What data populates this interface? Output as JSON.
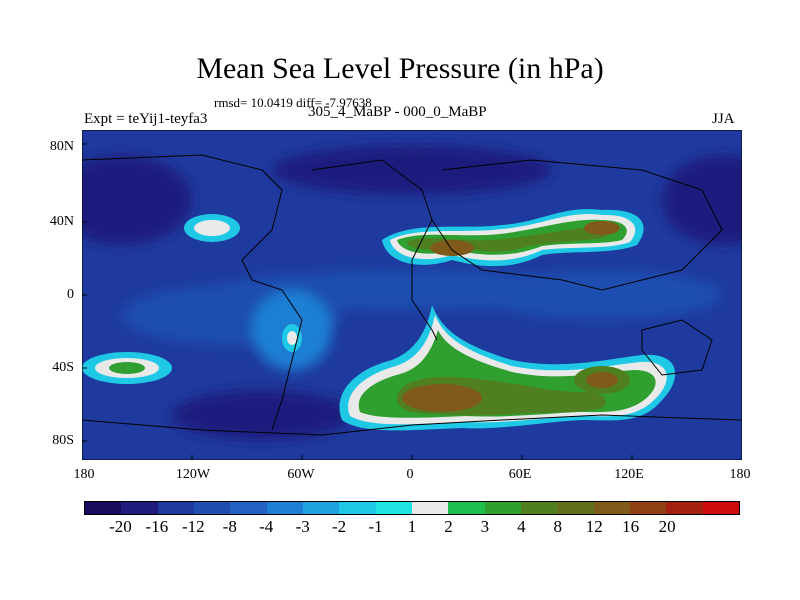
{
  "title": "Mean Sea Level Pressure (in hPa)",
  "stats": "rmsd= 10.0419 diff= -7.97638",
  "experiment": "Expt = teYij1-teyfa3",
  "comparison": "305_4_MaBP - 000_0_MaBP",
  "season": "JJA",
  "latitude_labels": [
    "80N",
    "40N",
    "0",
    "40S",
    "80S"
  ],
  "longitude_labels": [
    "180",
    "120W",
    "60W",
    "0",
    "60E",
    "120E",
    "180"
  ],
  "colorbar": {
    "colors": [
      "#1a0a5e",
      "#1f1c7e",
      "#1f3a9e",
      "#1f4eb0",
      "#2260c4",
      "#1f7fd4",
      "#21a3e0",
      "#1fc9e6",
      "#1fe3e0",
      "#e9e9e9",
      "#1fbf4f",
      "#2f9f2f",
      "#4f7f1f",
      "#5f6f1a",
      "#7f5a1a",
      "#8f3f14",
      "#a31f10",
      "#cc0b0b"
    ],
    "labels": [
      "-20",
      "-16",
      "-12",
      "-8",
      "-4",
      "-3",
      "-2",
      "-1",
      "1",
      "2",
      "3",
      "4",
      "8",
      "12",
      "16",
      "20"
    ]
  },
  "map_colors": {
    "ocean": "#1f3a9e",
    "deep_low": "#1f1c7e",
    "medium": "#1f4eb0",
    "light": "#1f7fd4",
    "cyan": "#1fc9e6",
    "white": "#e9e9e9",
    "green": "#2f9f2f",
    "olive": "#4f7f1f",
    "brown": "#7f5a1a",
    "coast": "#000000"
  }
}
